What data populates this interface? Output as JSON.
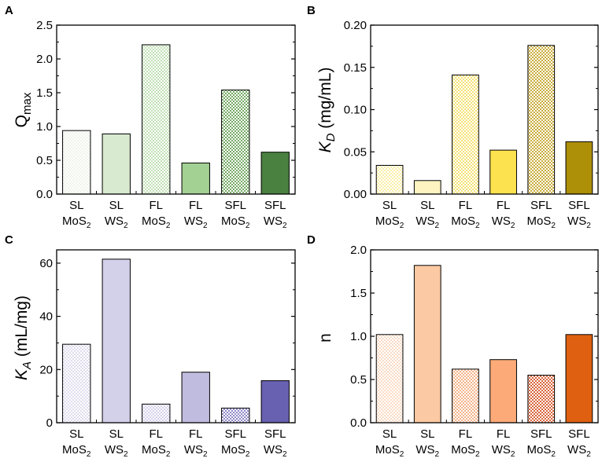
{
  "chart_data": [
    {
      "type": "bar",
      "panel": "A",
      "ylabel_main": "Q",
      "ylabel_sub": "max",
      "ylabel_italic": false,
      "ylim": [
        0,
        2.5
      ],
      "yticks": [
        "0.0",
        "0.5",
        "1.0",
        "1.5",
        "2.0",
        "2.5"
      ],
      "categories": [
        {
          "line1": "SL",
          "line2": "MoS",
          "sub": "2"
        },
        {
          "line1": "SL",
          "line2": "WS",
          "sub": "2"
        },
        {
          "line1": "FL",
          "line2": "MoS",
          "sub": "2"
        },
        {
          "line1": "FL",
          "line2": "WS",
          "sub": "2"
        },
        {
          "line1": "SFL",
          "line2": "MoS",
          "sub": "2"
        },
        {
          "line1": "SFL",
          "line2": "WS",
          "sub": "2"
        }
      ],
      "values": [
        0.94,
        0.89,
        2.21,
        0.46,
        1.54,
        0.62
      ],
      "colors": [
        "#eef5ea",
        "#d8ead0",
        "#c2e0b6",
        "#a3d193",
        "#77aa66",
        "#4a8040"
      ],
      "patterned": [
        true,
        false,
        true,
        false,
        true,
        false
      ]
    },
    {
      "type": "bar",
      "panel": "B",
      "ylabel_main": "K",
      "ylabel_sub": "D",
      "ylabel_rest": " (mg/mL)",
      "ylabel_italic": true,
      "ylim": [
        0,
        0.2
      ],
      "yticks": [
        "0.00",
        "0.05",
        "0.10",
        "0.15",
        "0.20"
      ],
      "categories": [
        {
          "line1": "SL",
          "line2": "MoS",
          "sub": "2"
        },
        {
          "line1": "SL",
          "line2": "WS",
          "sub": "2"
        },
        {
          "line1": "FL",
          "line2": "MoS",
          "sub": "2"
        },
        {
          "line1": "FL",
          "line2": "WS",
          "sub": "2"
        },
        {
          "line1": "SFL",
          "line2": "MoS",
          "sub": "2"
        },
        {
          "line1": "SFL",
          "line2": "WS",
          "sub": "2"
        }
      ],
      "values": [
        0.034,
        0.016,
        0.141,
        0.052,
        0.176,
        0.062
      ],
      "colors": [
        "#fbefaa",
        "#fdf4c2",
        "#f6e37a",
        "#fce24e",
        "#c9ad3c",
        "#ad8f08"
      ],
      "patterned": [
        true,
        false,
        true,
        false,
        true,
        false
      ]
    },
    {
      "type": "bar",
      "panel": "C",
      "ylabel_main": "K",
      "ylabel_sub": "A",
      "ylabel_rest": " (mL/mg)",
      "ylabel_italic": true,
      "ylim": [
        0,
        65
      ],
      "yticks": [
        "0",
        "20",
        "40",
        "60"
      ],
      "ytick_values": [
        0,
        20,
        40,
        60
      ],
      "categories": [
        {
          "line1": "SL",
          "line2": "MoS",
          "sub": "2"
        },
        {
          "line1": "SL",
          "line2": "WS",
          "sub": "2"
        },
        {
          "line1": "FL",
          "line2": "MoS",
          "sub": "2"
        },
        {
          "line1": "FL",
          "line2": "WS",
          "sub": "2"
        },
        {
          "line1": "SFL",
          "line2": "MoS",
          "sub": "2"
        },
        {
          "line1": "SFL",
          "line2": "WS",
          "sub": "2"
        }
      ],
      "values": [
        29.5,
        61.5,
        7.0,
        19.0,
        5.5,
        15.8
      ],
      "colors": [
        "#e0dcef",
        "#d3d0ea",
        "#d4d0ea",
        "#c0bcdf",
        "#8e88c7",
        "#6860b0"
      ],
      "patterned": [
        true,
        false,
        true,
        false,
        true,
        false
      ]
    },
    {
      "type": "bar",
      "panel": "D",
      "ylabel_main": "n",
      "ylabel_sub": "",
      "ylabel_italic": false,
      "ylim": [
        0,
        2.0
      ],
      "yticks": [
        "0.0",
        "0.5",
        "1.0",
        "1.5",
        "2.0"
      ],
      "categories": [
        {
          "line1": "SL",
          "line2": "MoS",
          "sub": "2"
        },
        {
          "line1": "SL",
          "line2": "WS",
          "sub": "2"
        },
        {
          "line1": "FL",
          "line2": "MoS",
          "sub": "2"
        },
        {
          "line1": "FL",
          "line2": "WS",
          "sub": "2"
        },
        {
          "line1": "SFL",
          "line2": "MoS",
          "sub": "2"
        },
        {
          "line1": "SFL",
          "line2": "WS",
          "sub": "2"
        }
      ],
      "values": [
        1.02,
        1.82,
        0.62,
        0.73,
        0.55,
        1.02
      ],
      "colors": [
        "#fbdcc6",
        "#fbc9a3",
        "#f4b48a",
        "#fbaa78",
        "#d9643a",
        "#de6010"
      ],
      "patterned": [
        true,
        false,
        true,
        false,
        true,
        false
      ]
    }
  ]
}
